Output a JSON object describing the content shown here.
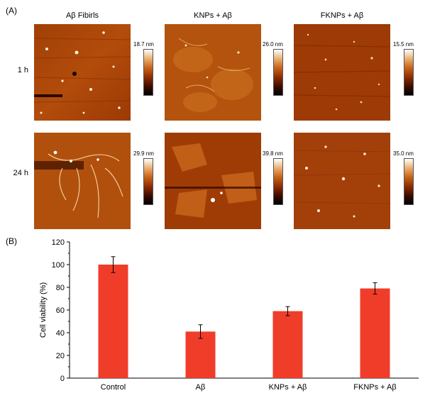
{
  "panel_a_label": "(A)",
  "panel_b_label": "(B)",
  "columns": [
    "Aβ Fibirls",
    "KNPs + Aβ",
    "FKNPs + Aβ"
  ],
  "rows": [
    "1 h",
    "24 h"
  ],
  "colorbar_labels": {
    "r0": [
      "18.7 nm",
      "26.0 nm",
      "15.5 nm"
    ],
    "r1": [
      "29.9 nm",
      "39.8 nm",
      "35.0 nm"
    ]
  },
  "colormap": [
    "#000000",
    "#8a2a00",
    "#c8641a",
    "#ffffff"
  ],
  "chart_data": {
    "type": "bar",
    "categories": [
      "Control",
      "Aβ",
      "KNPs + Aβ",
      "FKNPs + Aβ"
    ],
    "values": [
      100,
      41,
      59,
      79
    ],
    "errors": [
      7,
      6,
      4,
      5
    ],
    "ylabel": "Cell viability (%)",
    "ylim": [
      0,
      120
    ],
    "yticks": [
      0,
      20,
      40,
      60,
      80,
      100,
      120
    ],
    "bar_color": "#ef3d2a",
    "grid": false
  }
}
